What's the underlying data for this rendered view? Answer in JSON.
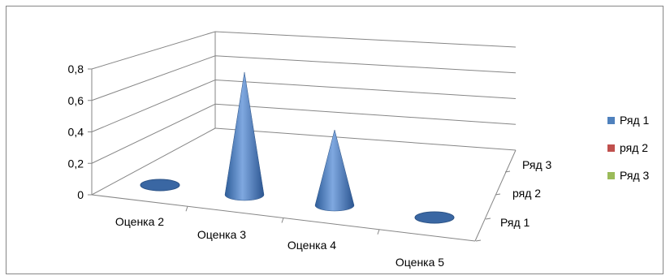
{
  "chart_data": {
    "type": "bar",
    "subtype": "3d-cone",
    "title": "",
    "xlabel": "",
    "ylabel": "",
    "ylim": [
      0,
      0.8
    ],
    "grid": true,
    "legend_position": "right",
    "yticks": [
      "0",
      "0,2",
      "0,4",
      "0,6",
      "0,8"
    ],
    "categories": [
      "Оценка 2",
      "Оценка 3",
      "Оценка 4",
      "Оценка 5"
    ],
    "depth_labels": [
      "Ряд 1",
      "ряд 2",
      "Ряд 3"
    ],
    "series": [
      {
        "name": "Ряд 1",
        "color": "#4F81BD",
        "values": [
          0,
          0.65,
          0.4,
          0
        ]
      },
      {
        "name": "ряд 2",
        "color": "#C0504D",
        "values": [
          0,
          0,
          0,
          0
        ]
      },
      {
        "name": "Ряд 3",
        "color": "#9BBB59",
        "values": [
          0,
          0,
          0,
          0
        ]
      }
    ]
  }
}
